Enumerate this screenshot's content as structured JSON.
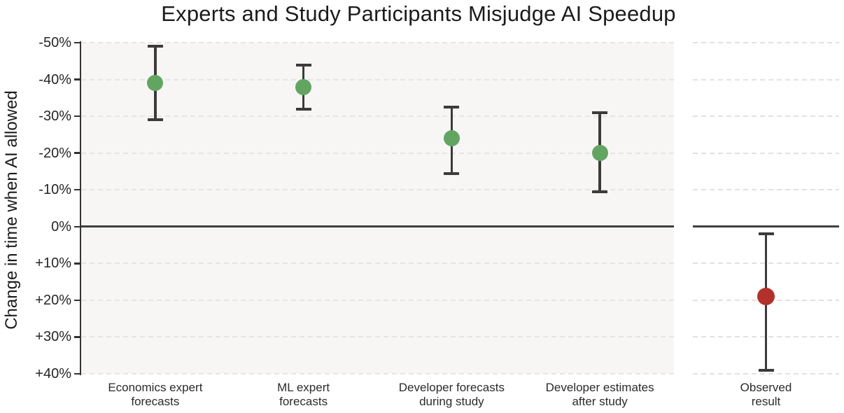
{
  "title": "Experts and Study Participants Misjudge AI Speedup",
  "chart_data": {
    "type": "scatter",
    "subtype": "point-estimates-with-error-bars",
    "title": "Experts and Study Participants Misjudge AI Speedup",
    "xlabel": "",
    "ylabel": "Change in time when AI allowed",
    "y_unit": "%",
    "ylim": [
      -50,
      40
    ],
    "y_axis_inverted": true,
    "y_tick_values": [
      -50,
      -40,
      -30,
      -20,
      -10,
      0,
      10,
      20,
      30,
      40
    ],
    "y_ticks": [
      "-50%",
      "-40%",
      "-30%",
      "-20%",
      "-10%",
      "0%",
      "+10%",
      "+20%",
      "+30%",
      "+40%"
    ],
    "grid": "horizontal-dashed",
    "zero_reference_line": true,
    "legend": "none",
    "groups": [
      {
        "panel": "main",
        "label": "Economics expert forecasts",
        "label_lines": [
          "Economics expert",
          "forecasts"
        ],
        "value": -39,
        "ci": [
          -49,
          -29
        ],
        "series": "forecast"
      },
      {
        "panel": "main",
        "label": "ML expert forecasts",
        "label_lines": [
          "ML expert",
          "forecasts"
        ],
        "value": -38,
        "ci": [
          -44,
          -32
        ],
        "series": "forecast"
      },
      {
        "panel": "main",
        "label": "Developer forecasts during study",
        "label_lines": [
          "Developer forecasts",
          "during study"
        ],
        "value": -24,
        "ci": [
          -32.5,
          -14.5
        ],
        "series": "forecast"
      },
      {
        "panel": "main",
        "label": "Developer estimates after study",
        "label_lines": [
          "Developer estimates",
          "after study"
        ],
        "value": -20,
        "ci": [
          -31,
          -9.5
        ],
        "series": "forecast"
      },
      {
        "panel": "observed",
        "label": "Observed result",
        "label_lines": [
          "Observed",
          "result"
        ],
        "value": 19,
        "ci": [
          2,
          39
        ],
        "series": "observed"
      }
    ]
  },
  "colors": {
    "point_forecast": "#61a561",
    "point_observed": "#b4302b",
    "error_bar": "#3b3b3b",
    "zero_line": "#3f3f3f",
    "panel_background": "#f7f6f5",
    "grid_main": "#e6e5e2",
    "grid_observed": "#e1e1e1",
    "axis": "#333333",
    "text": "#1c1c1c"
  }
}
